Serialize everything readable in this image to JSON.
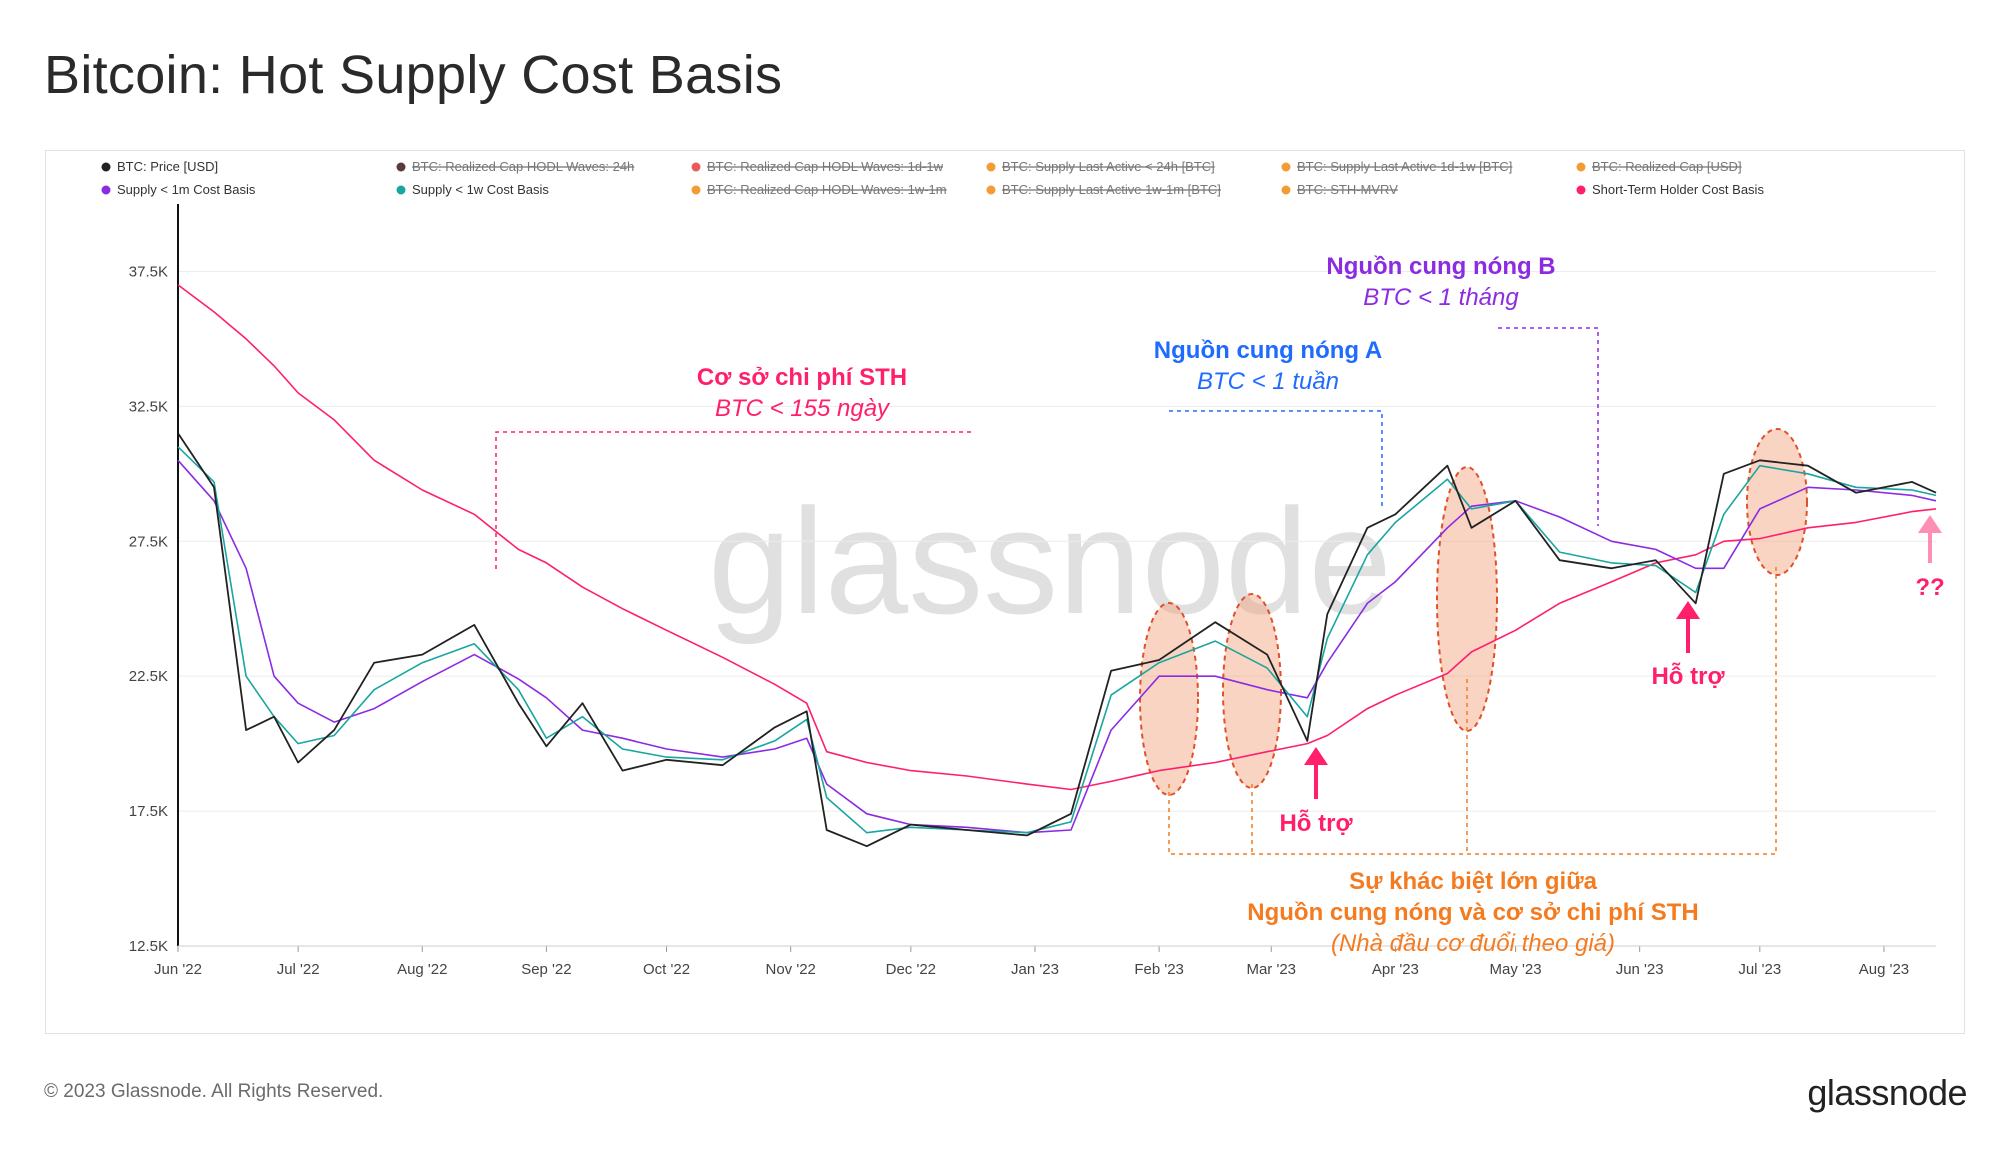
{
  "title": "Bitcoin: Hot Supply Cost Basis",
  "footer": {
    "copyright": "© 2023 Glassnode. All Rights Reserved.",
    "logo": "glassnode"
  },
  "watermark": "glassnode",
  "colors": {
    "price": "#222222",
    "purple": "#8b2be2",
    "teal": "#1aa5a0",
    "sth": "#ff1f6a",
    "orange": "#f47b20",
    "blue": "#1f6bff"
  },
  "legend": [
    {
      "label": "BTC: Price [USD]",
      "color": "#222222",
      "active": true
    },
    {
      "label": "BTC: Realized Cap HODL Waves: 24h",
      "color": "#5a3a3a",
      "active": false
    },
    {
      "label": "BTC: Realized Cap HODL Waves: 1d-1w",
      "color": "#e85a5a",
      "active": false
    },
    {
      "label": "BTC: Supply Last Active < 24h [BTC]",
      "color": "#f39c33",
      "active": false
    },
    {
      "label": "BTC: Supply Last Active 1d-1w [BTC]",
      "color": "#f39c33",
      "active": false
    },
    {
      "label": "BTC: Realized Cap [USD]",
      "color": "#f39c33",
      "active": false
    },
    {
      "label": "Supply < 1m Cost Basis",
      "color": "#8b2be2",
      "active": true
    },
    {
      "label": "Supply < 1w Cost Basis",
      "color": "#1aa5a0",
      "active": true
    },
    {
      "label": "BTC: Realized Cap HODL Waves: 1w-1m",
      "color": "#f39c33",
      "active": false
    },
    {
      "label": "BTC: Supply Last Active 1w-1m [BTC]",
      "color": "#f39c33",
      "active": false
    },
    {
      "label": "BTC: STH-MVRV",
      "color": "#f39c33",
      "active": false
    },
    {
      "label": "Short-Term Holder Cost Basis",
      "color": "#ff1f6a",
      "active": true
    }
  ],
  "annotations": {
    "sth_title": "Cơ sở chi phí STH",
    "sth_sub": "BTC < 155 ngày",
    "hotA_title": "Nguồn cung nóng A",
    "hotA_sub": "BTC < 1 tuần",
    "hotB_title": "Nguồn cung nóng B",
    "hotB_sub": "BTC < 1 tháng",
    "support_label": "Hỗ trợ",
    "unknown_label": "??",
    "diff_line1": "Sự khác biệt lớn giữa",
    "diff_line2": "Nguồn cung nóng và cơ sở chi phí STH",
    "diff_line3": "(Nhà đầu cơ đuổi theo giá)"
  },
  "chart_data": {
    "type": "line",
    "title": "Bitcoin: Hot Supply Cost Basis",
    "ylim": [
      12500,
      40000
    ],
    "y_ticks": [
      12500,
      17500,
      22500,
      27500,
      32500,
      37500
    ],
    "y_tick_labels": [
      "12.5K",
      "17.5K",
      "22.5K",
      "27.5K",
      "32.5K",
      "37.5K"
    ],
    "x_ticks": [
      "Jun '22",
      "Jul '22",
      "Aug '22",
      "Sep '22",
      "Oct '22",
      "Nov '22",
      "Dec '22",
      "Jan '23",
      "Feb '23",
      "Mar '23",
      "Apr '23",
      "May '23",
      "Jun '23",
      "Jul '23",
      "Aug '23"
    ],
    "grid": true,
    "legend_position": "top",
    "x": [
      "2022-06-01",
      "2022-06-10",
      "2022-06-18",
      "2022-06-25",
      "2022-07-01",
      "2022-07-10",
      "2022-07-20",
      "2022-08-01",
      "2022-08-14",
      "2022-08-25",
      "2022-09-01",
      "2022-09-10",
      "2022-09-20",
      "2022-10-01",
      "2022-10-15",
      "2022-10-28",
      "2022-11-05",
      "2022-11-10",
      "2022-11-20",
      "2022-12-01",
      "2022-12-15",
      "2022-12-30",
      "2023-01-10",
      "2023-01-20",
      "2023-02-01",
      "2023-02-15",
      "2023-02-28",
      "2023-03-10",
      "2023-03-15",
      "2023-03-25",
      "2023-04-01",
      "2023-04-14",
      "2023-04-20",
      "2023-05-01",
      "2023-05-12",
      "2023-05-25",
      "2023-06-05",
      "2023-06-15",
      "2023-06-22",
      "2023-07-01",
      "2023-07-13",
      "2023-07-25",
      "2023-08-08",
      "2023-08-14"
    ],
    "series": [
      {
        "name": "BTC: Price [USD]",
        "color": "#222222",
        "values": [
          31500,
          29500,
          20500,
          21000,
          19300,
          20500,
          23000,
          23300,
          24400,
          21500,
          19900,
          21500,
          19000,
          19400,
          19200,
          20600,
          21200,
          16800,
          16200,
          17000,
          16800,
          16600,
          17400,
          22700,
          23100,
          24500,
          23300,
          20100,
          24800,
          28000,
          28500,
          30300,
          28000,
          29000,
          26800,
          26500,
          26800,
          25200,
          30000,
          30500,
          30300,
          29300,
          29700,
          29300
        ]
      },
      {
        "name": "Supply < 1m Cost Basis",
        "color": "#8b2be2",
        "values": [
          30500,
          29000,
          26500,
          22500,
          21500,
          20800,
          21300,
          22300,
          23300,
          22400,
          21700,
          20500,
          20200,
          19800,
          19500,
          19800,
          20200,
          18500,
          17400,
          17000,
          16900,
          16700,
          16800,
          20500,
          22500,
          22500,
          22000,
          21700,
          23000,
          25200,
          26000,
          28000,
          28800,
          29000,
          28400,
          27500,
          27200,
          26500,
          26500,
          28700,
          29500,
          29400,
          29200,
          29000
        ]
      },
      {
        "name": "Supply < 1w Cost Basis",
        "color": "#1aa5a0",
        "values": [
          31000,
          29700,
          22500,
          21000,
          20000,
          20300,
          22000,
          23000,
          23700,
          22000,
          20200,
          21000,
          19800,
          19500,
          19400,
          20100,
          20900,
          18000,
          16700,
          16900,
          16800,
          16700,
          17100,
          21800,
          23000,
          23800,
          22800,
          21000,
          23900,
          27000,
          28200,
          29800,
          28700,
          29000,
          27100,
          26700,
          26600,
          25600,
          28500,
          30300,
          30000,
          29500,
          29400,
          29200
        ]
      },
      {
        "name": "Short-Term Holder Cost Basis",
        "color": "#ff1f6a",
        "values": [
          37000,
          36000,
          35000,
          34000,
          33000,
          32000,
          30500,
          29400,
          28500,
          27200,
          26700,
          25800,
          25000,
          24200,
          23200,
          22200,
          21500,
          19700,
          19300,
          19000,
          18800,
          18500,
          18300,
          18600,
          19000,
          19300,
          19700,
          20000,
          20300,
          21300,
          21800,
          22600,
          23400,
          24200,
          25200,
          26000,
          26700,
          27000,
          27500,
          27600,
          28000,
          28200,
          28600,
          28700
        ]
      }
    ]
  }
}
